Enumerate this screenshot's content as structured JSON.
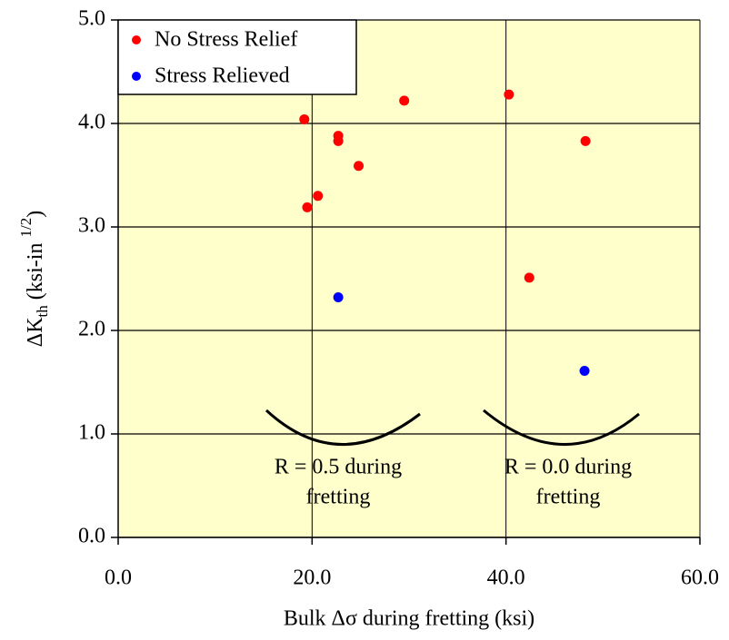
{
  "chart_data": {
    "type": "scatter",
    "xlabel": "Bulk Δσ during fretting (ksi)",
    "ylabel": {
      "main": "ΔK",
      "sub": "th",
      "rest": " (ksi-in ",
      "sup": "1/2",
      "end": ")"
    },
    "xlim": [
      0,
      60
    ],
    "ylim": [
      0,
      5
    ],
    "xticks": [
      {
        "value": 0,
        "label": "0.0"
      },
      {
        "value": 20,
        "label": "20.0"
      },
      {
        "value": 40,
        "label": "40.0"
      },
      {
        "value": 60,
        "label": "60.0"
      }
    ],
    "yticks": [
      {
        "value": 0,
        "label": "0.0"
      },
      {
        "value": 1,
        "label": "1.0"
      },
      {
        "value": 2,
        "label": "2.0"
      },
      {
        "value": 3,
        "label": "3.0"
      },
      {
        "value": 4,
        "label": "4.0"
      },
      {
        "value": 5,
        "label": "5.0"
      }
    ],
    "grid": true,
    "legend": "upper left",
    "series": [
      {
        "name": "No Stress Relief",
        "color": "#ff0000",
        "x": [
          19.5,
          20.6,
          19.2,
          22.7,
          22.7,
          24.8,
          29.5,
          40.3,
          48.2,
          42.4
        ],
        "values": [
          3.19,
          3.3,
          4.04,
          3.88,
          3.83,
          3.59,
          4.22,
          4.28,
          3.83,
          2.51
        ]
      },
      {
        "name": "Stress Relieved",
        "color": "#0000ff",
        "x": [
          22.7,
          48.1
        ],
        "values": [
          2.32,
          1.61
        ]
      }
    ],
    "annotations": [
      [
        "R = 0.5 during",
        "fretting"
      ],
      [
        "R = 0.0 during",
        "fretting"
      ]
    ]
  }
}
